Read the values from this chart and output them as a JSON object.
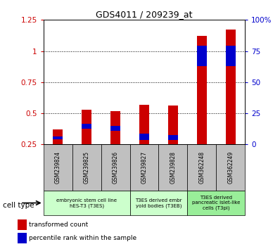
{
  "title": "GDS4011 / 209239_at",
  "samples": [
    "GSM239824",
    "GSM239825",
    "GSM239826",
    "GSM239827",
    "GSM239828",
    "GSM362248",
    "GSM362249"
  ],
  "red_values": [
    0.37,
    0.53,
    0.52,
    0.57,
    0.56,
    1.12,
    1.17
  ],
  "blue_values": [
    0.025,
    0.04,
    0.04,
    0.05,
    0.04,
    0.16,
    0.16
  ],
  "blue_bottoms": [
    0.29,
    0.375,
    0.36,
    0.285,
    0.285,
    0.88,
    0.88
  ],
  "cell_types": [
    {
      "label": "embryonic stem cell line\nhES-T3 (T3ES)",
      "span": [
        0,
        3
      ],
      "color": "#ccffcc"
    },
    {
      "label": "T3ES derived embr\nyoid bodies (T3EB)",
      "span": [
        3,
        5
      ],
      "color": "#ccffcc"
    },
    {
      "label": "T3ES derived\npancreatic islet-like\ncells (T3pi)",
      "span": [
        5,
        7
      ],
      "color": "#99ee99"
    }
  ],
  "ylim_left": [
    0.25,
    1.25
  ],
  "yticks_left": [
    0.25,
    0.5,
    0.75,
    1.0,
    1.25
  ],
  "ytick_left_labels": [
    "0.25",
    "0.5",
    "0.75",
    "1",
    "1.25"
  ],
  "ylim_right": [
    0,
    100
  ],
  "yticks_right": [
    0,
    25,
    50,
    75,
    100
  ],
  "ytick_right_labels": [
    "0",
    "25",
    "50",
    "75",
    "100%"
  ],
  "red_color": "#cc0000",
  "blue_color": "#0000cc",
  "bar_width": 0.35,
  "tick_bg_color": "#c0c0c0",
  "legend_red_label": "transformed count",
  "legend_blue_label": "percentile rank within the sample",
  "grid_yticks": [
    0.5,
    0.75,
    1.0
  ]
}
